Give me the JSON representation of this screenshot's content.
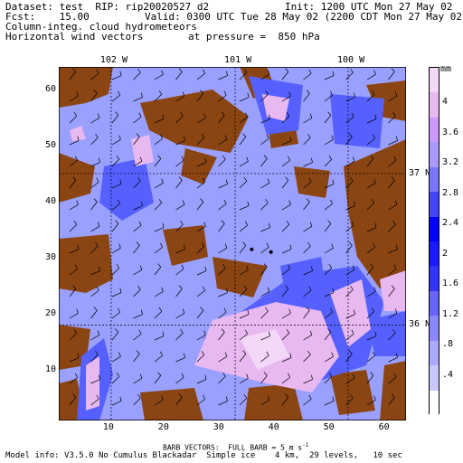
{
  "header": {
    "dataset_line": "Dataset: test  RIP: rip20020527 d2",
    "init_line": "Init: 1200 UTC Mon 27 May 02",
    "fcst_line": "Fcst:    15.00",
    "valid_line": "Valid: 0300 UTC Tue 28 May 02 (2200 CDT Mon 27 May 02)",
    "field1_line": "Column-integ. cloud hydrometeors",
    "field2_line": "Horizontal wind vectors",
    "pressure_line": "at pressure =  850 hPa"
  },
  "map": {
    "lon_labels": [
      {
        "text": "102 W",
        "grid_x": 10.5
      },
      {
        "text": "101 W",
        "grid_x": 33
      },
      {
        "text": "100 W",
        "grid_x": 53.5
      }
    ],
    "lat_labels": [
      {
        "text": "37 N",
        "grid_y": 45
      },
      {
        "text": "36 N",
        "grid_y": 18
      }
    ],
    "x_ticks": [
      10,
      20,
      30,
      40,
      50,
      60
    ],
    "y_ticks": [
      10,
      20,
      30,
      40,
      50,
      60
    ],
    "x_range": [
      1,
      64
    ],
    "y_range": [
      1,
      64
    ],
    "colors": {
      "terrain": "#8b4513",
      "low_cloud": "#9aa0ff",
      "medium_cloud": "#5560ff",
      "high_cloud": "#e8b8f0",
      "peak_cloud": "#f3d8f8"
    }
  },
  "legend": {
    "unit": "mm",
    "labels": [
      "4",
      "3.6",
      "3.2",
      "2.8",
      "2.4",
      "2",
      "1.6",
      "1.2",
      ".8",
      ".4"
    ],
    "colors": [
      "#ffffff",
      "#c8c8ff",
      "#aaaaff",
      "#8888ff",
      "#6666ff",
      "#3333ff",
      "#1a1aff",
      "#0000ff",
      "#4444ff",
      "#7777ff",
      "#aa99ff",
      "#cc99ff",
      "#e8b8f0",
      "#f3d8f8"
    ]
  },
  "footer": {
    "barb_line": "BARB VECTORS:  FULL BARB = 5 m s",
    "barb_exp": "-1",
    "model_line": "Model info: V3.5.0 No Cumulus Blackadar  Simple ice    4 km,  29 levels,   10 sec"
  }
}
